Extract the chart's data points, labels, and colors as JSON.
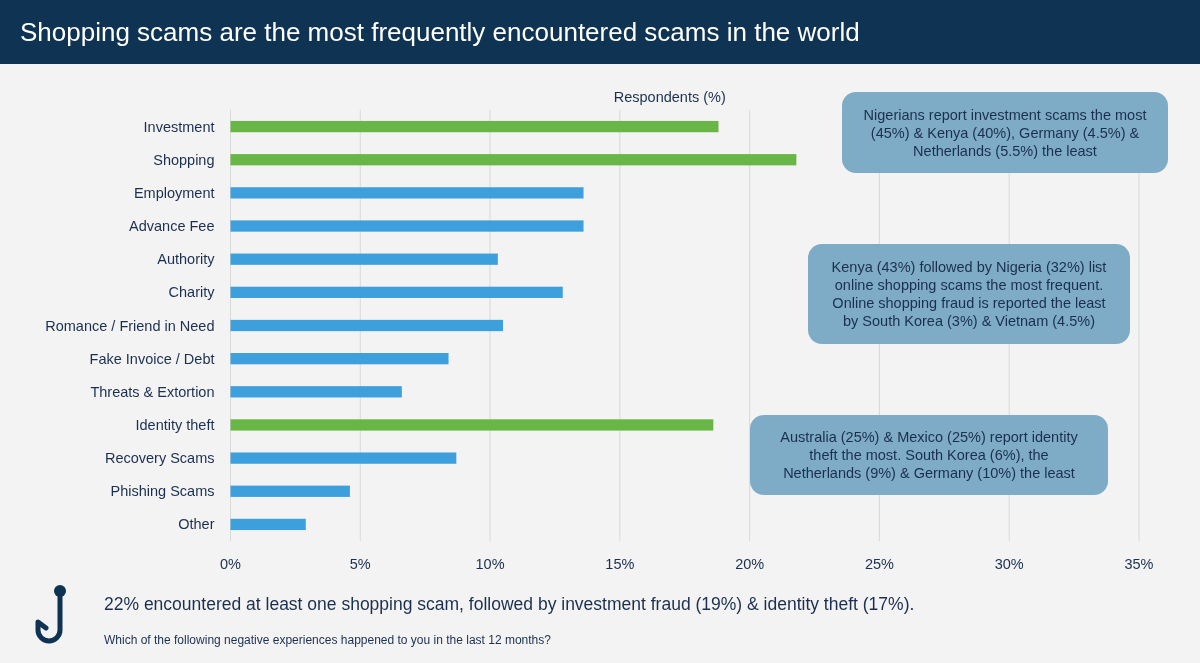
{
  "chart_data": {
    "type": "bar",
    "orientation": "horizontal",
    "title": "Shopping scams are the most frequently encountered scams in the world",
    "xlabel": "Respondents (%)",
    "categories": [
      "Investment",
      "Shopping",
      "Employment",
      "Advance Fee",
      "Authority",
      "Charity",
      "Romance / Friend in Need",
      "Fake Invoice / Debt",
      "Threats & Extortion",
      "Identity theft",
      "Recovery Scams",
      "Phishing Scams",
      "Other"
    ],
    "values": [
      18.8,
      21.8,
      13.6,
      13.6,
      10.3,
      12.8,
      10.5,
      8.4,
      6.6,
      18.6,
      8.7,
      4.6,
      2.9
    ],
    "colors": [
      "#68b645",
      "#68b645",
      "#3d9fdb",
      "#3d9fdb",
      "#3d9fdb",
      "#3d9fdb",
      "#3d9fdb",
      "#3d9fdb",
      "#3d9fdb",
      "#68b645",
      "#3d9fdb",
      "#3d9fdb",
      "#3d9fdb"
    ],
    "xlim": [
      0,
      35
    ],
    "xticks": [
      {
        "value": 0,
        "label": "0%"
      },
      {
        "value": 5,
        "label": "5%"
      },
      {
        "value": 10,
        "label": "10%"
      },
      {
        "value": 15,
        "label": "15%"
      },
      {
        "value": 20,
        "label": "20%"
      },
      {
        "value": 25,
        "label": "25%"
      },
      {
        "value": 30,
        "label": "30%"
      },
      {
        "value": 35,
        "label": "35%"
      }
    ],
    "grid": "x",
    "annotations": [
      "Nigerians report investment scams the most (45%) & Kenya (40%), Germany (4.5%) & Netherlands (5.5%) the least",
      "Kenya (43%) followed by Nigeria (32%) list online shopping scams the most frequent. Online shopping fraud is reported the least by South Korea (3%) & Vietnam (4.5%)",
      "Australia (25%) & Mexico (25%) report identity theft the most. South Korea (6%), the Netherlands (9%) & Germany (10%) the least",
      "22% encountered at least one shopping scam, followed by investment fraud (19%) & identity theft (17%).",
      "Which of the following negative experiences happened to you in the last 12 months?"
    ]
  }
}
